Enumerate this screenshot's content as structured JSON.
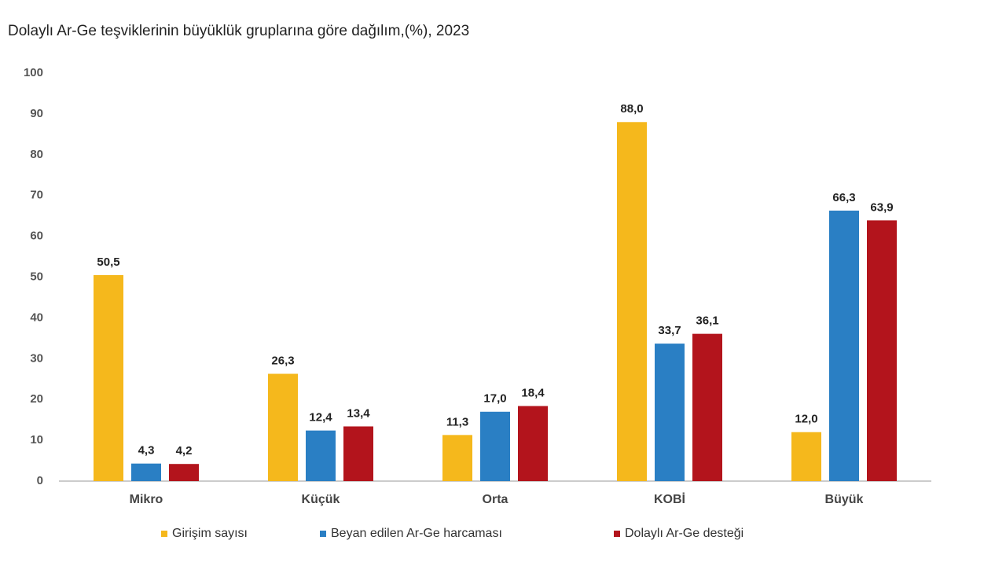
{
  "chart_data": {
    "type": "bar",
    "title": "Dolaylı Ar-Ge teşviklerinin büyüklük gruplarına göre dağılım,(%), 2023",
    "categories": [
      "Mikro",
      "Küçük",
      "Orta",
      "KOBİ",
      "Büyük"
    ],
    "series": [
      {
        "name": "Girişim sayısı",
        "color": "#f5b81c",
        "values": [
          50.5,
          26.3,
          11.3,
          88.0,
          12.0
        ],
        "value_labels": [
          "50,5",
          "26,3",
          "11,3",
          "88,0",
          "12,0"
        ]
      },
      {
        "name": "Beyan edilen Ar-Ge harcaması",
        "color": "#2a7fc4",
        "values": [
          4.3,
          12.4,
          17.0,
          33.7,
          66.3
        ],
        "value_labels": [
          "4,3",
          "12,4",
          "17,0",
          "33,7",
          "66,3"
        ]
      },
      {
        "name": "Dolaylı Ar-Ge desteği",
        "color": "#b3141c",
        "values": [
          4.2,
          13.4,
          18.4,
          36.1,
          63.9
        ],
        "value_labels": [
          "4,2",
          "13,4",
          "18,4",
          "36,1",
          "63,9"
        ]
      }
    ],
    "ylim": [
      0,
      100
    ],
    "yticks": [
      0,
      10,
      20,
      30,
      40,
      50,
      60,
      70,
      80,
      90,
      100
    ],
    "grid": false,
    "legend": "bottom"
  }
}
